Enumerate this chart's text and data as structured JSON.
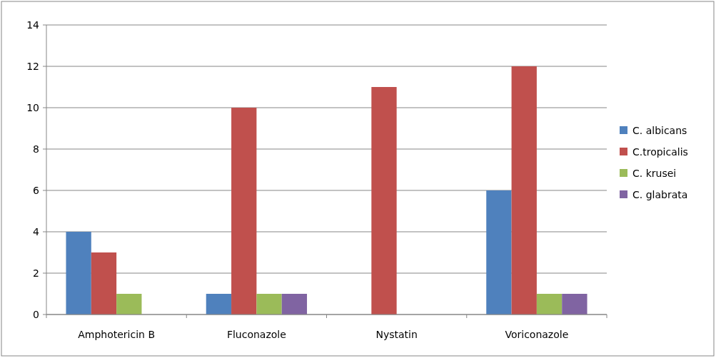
{
  "chart_data": {
    "type": "bar",
    "categories": [
      "Amphotericin B",
      "Fluconazole",
      "Nystatin",
      "Voriconazole"
    ],
    "series": [
      {
        "name": "C. albicans",
        "color": "#4f81bd",
        "values": [
          4,
          1,
          0,
          6
        ]
      },
      {
        "name": "C.tropicalis",
        "color": "#c0504d",
        "values": [
          3,
          10,
          11,
          12
        ]
      },
      {
        "name": "C. krusei",
        "color": "#9bbb59",
        "values": [
          1,
          1,
          0,
          1
        ]
      },
      {
        "name": "C. glabrata",
        "color": "#8064a2",
        "values": [
          0,
          1,
          0,
          1
        ]
      }
    ],
    "ylim": [
      0,
      14
    ],
    "yticks": [
      0,
      2,
      4,
      6,
      8,
      10,
      12,
      14
    ],
    "grid": "y",
    "legend": "right"
  }
}
